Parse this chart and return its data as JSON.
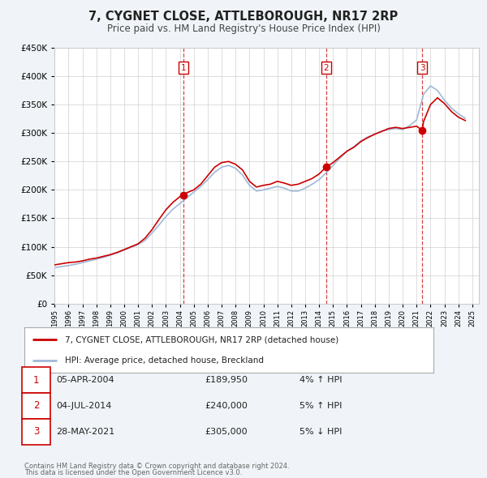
{
  "title": "7, CYGNET CLOSE, ATTLEBOROUGH, NR17 2RP",
  "subtitle": "Price paid vs. HM Land Registry's House Price Index (HPI)",
  "property_label": "7, CYGNET CLOSE, ATTLEBOROUGH, NR17 2RP (detached house)",
  "hpi_label": "HPI: Average price, detached house, Breckland",
  "footnote1": "Contains HM Land Registry data © Crown copyright and database right 2024.",
  "footnote2": "This data is licensed under the Open Government Licence v3.0.",
  "transactions": [
    {
      "id": 1,
      "date": "05-APR-2004",
      "price": "£189,950",
      "change": "4% ↑ HPI",
      "year": 2004.26,
      "price_val": 189950
    },
    {
      "id": 2,
      "date": "04-JUL-2014",
      "price": "£240,000",
      "change": "5% ↑ HPI",
      "year": 2014.5,
      "price_val": 240000
    },
    {
      "id": 3,
      "date": "28-MAY-2021",
      "price": "£305,000",
      "change": "5% ↓ HPI",
      "year": 2021.41,
      "price_val": 305000
    }
  ],
  "property_color": "#cc0000",
  "hpi_color": "#a0b8d8",
  "background_color": "#f0f4f8",
  "plot_bg_color": "#ffffff",
  "ylim": [
    0,
    450000
  ],
  "xlim_start": 1995,
  "xlim_end": 2025.5,
  "property_data_x": [
    1995.0,
    1995.5,
    1996.0,
    1996.5,
    1997.0,
    1997.5,
    1998.0,
    1998.5,
    1999.0,
    1999.5,
    2000.0,
    2000.5,
    2001.0,
    2001.5,
    2002.0,
    2002.5,
    2003.0,
    2003.5,
    2004.0,
    2004.26,
    2004.5,
    2005.0,
    2005.5,
    2006.0,
    2006.5,
    2007.0,
    2007.5,
    2008.0,
    2008.5,
    2009.0,
    2009.5,
    2010.0,
    2010.5,
    2011.0,
    2011.5,
    2012.0,
    2012.5,
    2013.0,
    2013.5,
    2014.0,
    2014.5,
    2015.0,
    2015.5,
    2016.0,
    2016.5,
    2017.0,
    2017.5,
    2018.0,
    2018.5,
    2019.0,
    2019.5,
    2020.0,
    2020.5,
    2021.0,
    2021.41,
    2021.5,
    2022.0,
    2022.5,
    2023.0,
    2023.5,
    2024.0,
    2024.5
  ],
  "property_data_y": [
    68000,
    70000,
    72000,
    73000,
    75000,
    78000,
    80000,
    83000,
    86000,
    90000,
    95000,
    100000,
    105000,
    115000,
    130000,
    148000,
    165000,
    178000,
    188000,
    189950,
    195000,
    200000,
    210000,
    225000,
    240000,
    248000,
    250000,
    245000,
    235000,
    215000,
    205000,
    208000,
    210000,
    215000,
    212000,
    208000,
    210000,
    215000,
    220000,
    228000,
    240000,
    248000,
    258000,
    268000,
    275000,
    285000,
    292000,
    298000,
    303000,
    308000,
    310000,
    308000,
    310000,
    312000,
    305000,
    320000,
    350000,
    362000,
    352000,
    338000,
    328000,
    322000
  ],
  "hpi_data_x": [
    1995.0,
    1995.5,
    1996.0,
    1996.5,
    1997.0,
    1997.5,
    1998.0,
    1998.5,
    1999.0,
    1999.5,
    2000.0,
    2000.5,
    2001.0,
    2001.5,
    2002.0,
    2002.5,
    2003.0,
    2003.5,
    2004.0,
    2004.5,
    2005.0,
    2005.5,
    2006.0,
    2006.5,
    2007.0,
    2007.5,
    2008.0,
    2008.5,
    2009.0,
    2009.5,
    2010.0,
    2010.5,
    2011.0,
    2011.5,
    2012.0,
    2012.5,
    2013.0,
    2013.5,
    2014.0,
    2014.5,
    2015.0,
    2015.5,
    2016.0,
    2016.5,
    2017.0,
    2017.5,
    2018.0,
    2018.5,
    2019.0,
    2019.5,
    2020.0,
    2020.5,
    2021.0,
    2021.5,
    2022.0,
    2022.5,
    2023.0,
    2023.5,
    2024.0,
    2024.5
  ],
  "hpi_data_y": [
    63000,
    65000,
    67000,
    69000,
    72000,
    75000,
    78000,
    81000,
    85000,
    89000,
    94000,
    99000,
    104000,
    111000,
    124000,
    138000,
    153000,
    166000,
    176000,
    186000,
    196000,
    206000,
    218000,
    231000,
    240000,
    243000,
    238000,
    226000,
    208000,
    198000,
    200000,
    203000,
    206000,
    203000,
    198000,
    198000,
    203000,
    210000,
    218000,
    230000,
    243000,
    256000,
    268000,
    276000,
    286000,
    293000,
    298000,
    303000,
    306000,
    308000,
    306000,
    313000,
    323000,
    368000,
    383000,
    375000,
    358000,
    344000,
    334000,
    326000
  ]
}
